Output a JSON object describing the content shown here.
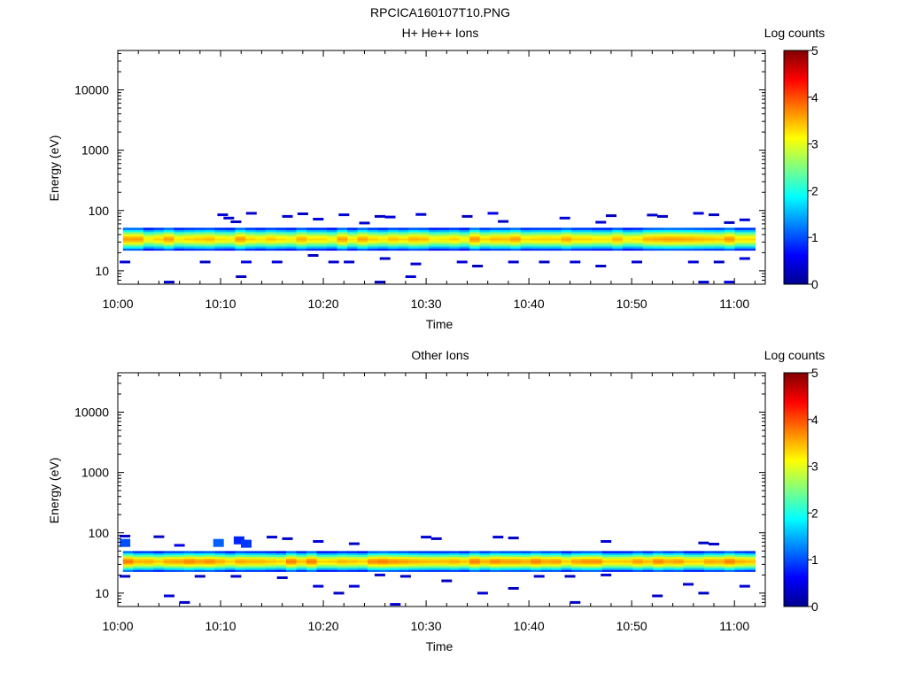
{
  "figure": {
    "title": "RPCICA160107T10.PNG"
  },
  "colors": {
    "jet": [
      "#00008f",
      "#0000ff",
      "#0080ff",
      "#00ffff",
      "#80ff80",
      "#ffff00",
      "#ff8000",
      "#ff0000",
      "#800000"
    ]
  },
  "chart_data": [
    {
      "type": "heatmap",
      "title": "H+ He++ Ions",
      "xlabel": "Time",
      "ylabel": "Energy (eV)",
      "xlim": [
        "10:00",
        "11:03"
      ],
      "ylim": [
        6,
        45000
      ],
      "yscale": "log",
      "xticks": [
        "10:00",
        "10:10",
        "10:20",
        "10:30",
        "10:40",
        "10:50",
        "11:00"
      ],
      "yticks": [
        "10",
        "100",
        "1000",
        "10000"
      ],
      "colorbar": {
        "label": "Log counts",
        "range": [
          0,
          5
        ],
        "ticks": [
          "0",
          "1",
          "2",
          "3",
          "4",
          "5"
        ]
      },
      "band": {
        "energy_low": 22,
        "energy_high": 52,
        "peak_energy": 34,
        "peak_log_counts": 3.4,
        "time_start": "10:00.5",
        "time_end": "11:02"
      },
      "sparse_points": [
        {
          "t": 10.2,
          "e": 85,
          "v": 0.4
        },
        {
          "t": 10.8,
          "e": 75,
          "v": 0.4
        },
        {
          "t": 13.0,
          "e": 90,
          "v": 0.3
        },
        {
          "t": 16.5,
          "e": 80,
          "v": 0.4
        },
        {
          "t": 18.0,
          "e": 88,
          "v": 0.3
        },
        {
          "t": 19.5,
          "e": 72,
          "v": 0.5
        },
        {
          "t": 22.0,
          "e": 85,
          "v": 0.4
        },
        {
          "t": 25.5,
          "e": 80,
          "v": 0.3
        },
        {
          "t": 26.5,
          "e": 78,
          "v": 0.4
        },
        {
          "t": 29.5,
          "e": 86,
          "v": 0.4
        },
        {
          "t": 34.0,
          "e": 80,
          "v": 0.3
        },
        {
          "t": 36.5,
          "e": 90,
          "v": 0.5
        },
        {
          "t": 43.5,
          "e": 75,
          "v": 0.4
        },
        {
          "t": 48.0,
          "e": 82,
          "v": 0.3
        },
        {
          "t": 52.0,
          "e": 84,
          "v": 0.4
        },
        {
          "t": 53.0,
          "e": 80,
          "v": 0.3
        },
        {
          "t": 56.5,
          "e": 90,
          "v": 0.4
        },
        {
          "t": 58.0,
          "e": 85,
          "v": 0.3
        },
        {
          "t": 61.0,
          "e": 70,
          "v": 0.4
        },
        {
          "t": 11.5,
          "e": 65,
          "v": 0.3
        },
        {
          "t": 24.0,
          "e": 62,
          "v": 0.4
        },
        {
          "t": 37.5,
          "e": 66,
          "v": 0.3
        },
        {
          "t": 47.0,
          "e": 64,
          "v": 0.4
        },
        {
          "t": 59.5,
          "e": 63,
          "v": 0.3
        },
        {
          "t": 0.7,
          "e": 14,
          "v": 0.4
        },
        {
          "t": 8.5,
          "e": 14,
          "v": 0.3
        },
        {
          "t": 12.5,
          "e": 14,
          "v": 0.5
        },
        {
          "t": 15.5,
          "e": 14,
          "v": 0.4
        },
        {
          "t": 19.0,
          "e": 18,
          "v": 0.3
        },
        {
          "t": 21.0,
          "e": 14,
          "v": 0.4
        },
        {
          "t": 22.5,
          "e": 14,
          "v": 0.4
        },
        {
          "t": 26.0,
          "e": 16,
          "v": 0.3
        },
        {
          "t": 29.0,
          "e": 13,
          "v": 0.4
        },
        {
          "t": 33.5,
          "e": 14,
          "v": 0.4
        },
        {
          "t": 35.0,
          "e": 12,
          "v": 0.3
        },
        {
          "t": 38.5,
          "e": 14,
          "v": 0.4
        },
        {
          "t": 41.5,
          "e": 14,
          "v": 0.3
        },
        {
          "t": 44.5,
          "e": 14,
          "v": 0.4
        },
        {
          "t": 47.0,
          "e": 12,
          "v": 0.3
        },
        {
          "t": 50.5,
          "e": 14,
          "v": 0.4
        },
        {
          "t": 56.0,
          "e": 14,
          "v": 0.4
        },
        {
          "t": 58.5,
          "e": 14,
          "v": 0.3
        },
        {
          "t": 61.0,
          "e": 16,
          "v": 0.4
        },
        {
          "t": 12.0,
          "e": 8,
          "v": 0.3
        },
        {
          "t": 28.5,
          "e": 8,
          "v": 0.4
        },
        {
          "t": 57.0,
          "e": 6.5,
          "v": 0.4
        },
        {
          "t": 59.5,
          "e": 6.5,
          "v": 0.5
        },
        {
          "t": 5.0,
          "e": 6.5,
          "v": 0.3
        },
        {
          "t": 25.5,
          "e": 6.5,
          "v": 0.3
        }
      ]
    },
    {
      "type": "heatmap",
      "title": "Other Ions",
      "xlabel": "Time",
      "ylabel": "Energy (eV)",
      "xlim": [
        "10:00",
        "11:03"
      ],
      "ylim": [
        6,
        45000
      ],
      "yscale": "log",
      "xticks": [
        "10:00",
        "10:10",
        "10:20",
        "10:30",
        "10:40",
        "10:50",
        "11:00"
      ],
      "yticks": [
        "10",
        "100",
        "1000",
        "10000"
      ],
      "colorbar": {
        "label": "Log counts",
        "range": [
          0,
          5
        ],
        "ticks": [
          "0",
          "1",
          "2",
          "3",
          "4",
          "5"
        ]
      },
      "band": {
        "energy_low": 23,
        "energy_high": 50,
        "peak_energy": 34,
        "peak_log_counts": 3.6,
        "time_start": "10:00.5",
        "time_end": "11:02"
      },
      "sparse_points": [
        {
          "t": 0.7,
          "e": 88,
          "v": 0.4
        },
        {
          "t": 0.7,
          "e": 68,
          "v": 1.0
        },
        {
          "t": 4.0,
          "e": 86,
          "v": 0.3
        },
        {
          "t": 6.0,
          "e": 62,
          "v": 0.5
        },
        {
          "t": 9.8,
          "e": 68,
          "v": 1.1
        },
        {
          "t": 11.8,
          "e": 75,
          "v": 0.8
        },
        {
          "t": 12.5,
          "e": 66,
          "v": 0.9
        },
        {
          "t": 15.0,
          "e": 85,
          "v": 0.4
        },
        {
          "t": 16.5,
          "e": 80,
          "v": 0.3
        },
        {
          "t": 19.5,
          "e": 72,
          "v": 0.4
        },
        {
          "t": 23.0,
          "e": 66,
          "v": 0.3
        },
        {
          "t": 30.0,
          "e": 85,
          "v": 0.4
        },
        {
          "t": 31.0,
          "e": 80,
          "v": 0.3
        },
        {
          "t": 37.0,
          "e": 85,
          "v": 0.4
        },
        {
          "t": 38.5,
          "e": 82,
          "v": 0.3
        },
        {
          "t": 47.5,
          "e": 72,
          "v": 0.4
        },
        {
          "t": 57.0,
          "e": 68,
          "v": 0.3
        },
        {
          "t": 58.0,
          "e": 65,
          "v": 0.4
        },
        {
          "t": 0.7,
          "e": 19,
          "v": 0.4
        },
        {
          "t": 8.0,
          "e": 19,
          "v": 0.3
        },
        {
          "t": 11.5,
          "e": 19,
          "v": 0.4
        },
        {
          "t": 16.0,
          "e": 18,
          "v": 0.3
        },
        {
          "t": 19.5,
          "e": 13,
          "v": 0.4
        },
        {
          "t": 21.5,
          "e": 10,
          "v": 0.3
        },
        {
          "t": 23.0,
          "e": 13,
          "v": 0.4
        },
        {
          "t": 25.5,
          "e": 20,
          "v": 0.4
        },
        {
          "t": 28.0,
          "e": 19,
          "v": 0.3
        },
        {
          "t": 32.0,
          "e": 16,
          "v": 0.3
        },
        {
          "t": 35.5,
          "e": 10,
          "v": 0.4
        },
        {
          "t": 38.5,
          "e": 12,
          "v": 0.3
        },
        {
          "t": 41.0,
          "e": 19,
          "v": 0.4
        },
        {
          "t": 44.0,
          "e": 19,
          "v": 0.3
        },
        {
          "t": 47.5,
          "e": 20,
          "v": 0.4
        },
        {
          "t": 55.5,
          "e": 14,
          "v": 0.4
        },
        {
          "t": 57.0,
          "e": 10,
          "v": 0.3
        },
        {
          "t": 61.0,
          "e": 13,
          "v": 0.4
        },
        {
          "t": 5.0,
          "e": 9,
          "v": 0.4
        },
        {
          "t": 6.5,
          "e": 7,
          "v": 0.3
        },
        {
          "t": 27.0,
          "e": 6.5,
          "v": 0.4
        },
        {
          "t": 44.5,
          "e": 7,
          "v": 0.3
        },
        {
          "t": 52.5,
          "e": 9,
          "v": 0.3
        }
      ]
    }
  ]
}
